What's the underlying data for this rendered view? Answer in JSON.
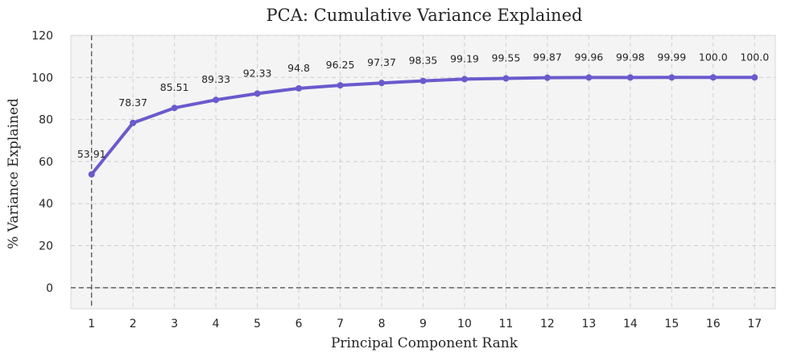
{
  "chart_data": {
    "type": "line",
    "title": "PCA: Cumulative Variance Explained",
    "xlabel": "Principal Component Rank",
    "ylabel": "% Variance Explained",
    "x": [
      1,
      2,
      3,
      4,
      5,
      6,
      7,
      8,
      9,
      10,
      11,
      12,
      13,
      14,
      15,
      16,
      17
    ],
    "values": [
      53.91,
      78.37,
      85.51,
      89.33,
      92.33,
      94.8,
      96.25,
      97.37,
      98.35,
      99.19,
      99.55,
      99.87,
      99.96,
      99.98,
      99.99,
      100.0,
      100.0
    ],
    "data_labels": [
      "53.91",
      "78.37",
      "85.51",
      "89.33",
      "92.33",
      "94.8",
      "96.25",
      "97.37",
      "98.35",
      "99.19",
      "99.55",
      "99.87",
      "99.96",
      "99.98",
      "99.99",
      "100.0",
      "100.0"
    ],
    "x_ticks": [
      "1",
      "2",
      "3",
      "4",
      "5",
      "6",
      "7",
      "8",
      "9",
      "10",
      "11",
      "12",
      "13",
      "14",
      "15",
      "16",
      "17"
    ],
    "y_ticks": [
      0,
      20,
      40,
      60,
      80,
      100,
      120
    ],
    "y_tick_labels": [
      "0",
      "20",
      "40",
      "60",
      "80",
      "100",
      "120"
    ],
    "ylim": [
      -10,
      120
    ],
    "xlim": [
      0.5,
      17.5
    ],
    "grid": true,
    "reference_lines": {
      "vertical_x": 1,
      "horizontal_y": 0
    },
    "line_color": "#6a5acd",
    "background_color": "#f4f4f4"
  }
}
